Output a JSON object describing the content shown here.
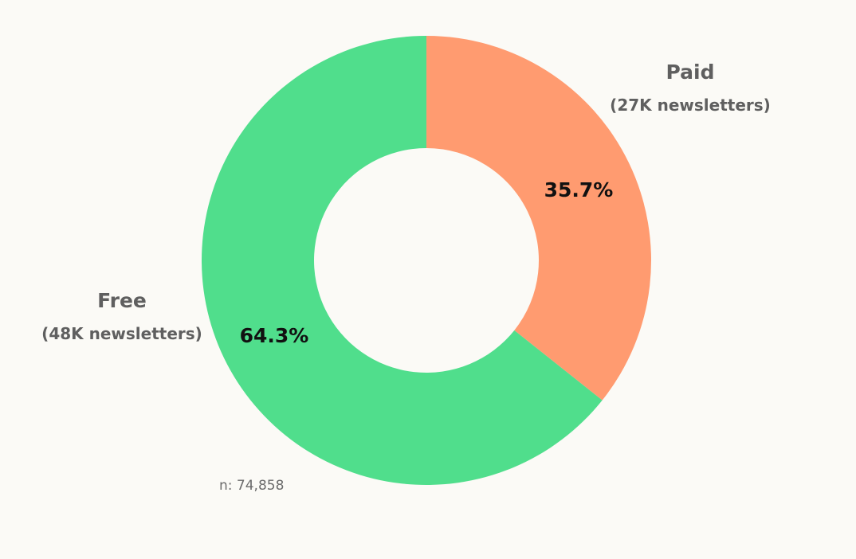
{
  "chart_data": {
    "type": "pie",
    "donut": true,
    "start": "top",
    "direction": "clockwise",
    "slices": [
      {
        "label": "Paid",
        "detail": "(27K newsletters)",
        "value": 35.7,
        "value_label": "35.7%",
        "color": "#ff9b70"
      },
      {
        "label": "Free",
        "detail": "(48K newsletters)",
        "value": 64.3,
        "value_label": "64.3%",
        "color": "#50de8c"
      }
    ],
    "note": "n: 74,858"
  }
}
